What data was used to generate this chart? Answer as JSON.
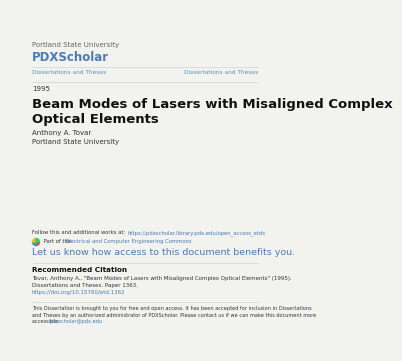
{
  "bg_color": "#f2f2ee",
  "institution": "Portland State University",
  "brand_name": "PDXScholar",
  "brand_color": "#4a7cb5",
  "nav_left": "Dissertations and Theses",
  "nav_right": "Dissertations and Theses",
  "nav_color": "#5a8fc0",
  "year": "1995",
  "title_line1": "Beam Modes of Lasers with Misaligned Complex",
  "title_line2": "Optical Elements",
  "author": "Anthony A. Tovar",
  "affiliation": "Portland State University",
  "follow_label": "Follow this and additional works at: ",
  "follow_link": "https://pdxscholar.library.pdx.edu/open_access_etds",
  "follow_link_color": "#4a7cb5",
  "part_of_label": " Part of the ",
  "part_of_link": "Electrical and Computer Engineering Commons",
  "part_of_link_color": "#4a7cb5",
  "cta_text": "Let us know how access to this document benefits you.",
  "cta_color": "#4a7cb5",
  "rec_citation_bold": "Recommended Citation",
  "rec_citation_line1": "Tovar, Anthony A., \"Beam Modes of Lasers with Misaligned Complex Optical Elements\" (1995).",
  "rec_citation_line2": "Dissertations and Theses. Paper 1363.",
  "rec_citation_link": "https://doi.org/10.15760/etd.1362",
  "rec_citation_link_color": "#4a7cb5",
  "disclaimer_line1": "This Dissertation is brought to you for free and open access. It has been accepted for inclusion in Dissertations",
  "disclaimer_line2": "and Theses by an authorized administrator of PDXScholar. Please contact us if we can make this document more",
  "disclaimer_line3": "accessible: ",
  "disclaimer_link": "pdxscholar@pdx.edu",
  "disclaimer_link_color": "#4a7cb5",
  "line_color": "#cccccc",
  "text_dark": "#333333",
  "text_black": "#111111",
  "text_gray": "#666666",
  "fs_institution": 5.0,
  "fs_brand": 8.5,
  "fs_nav": 4.2,
  "fs_year": 5.0,
  "fs_title": 9.5,
  "fs_author": 5.0,
  "fs_small": 3.8,
  "fs_cta": 6.8,
  "fs_rec_bold": 5.2,
  "fs_rec_body": 4.0,
  "fs_disclaimer": 3.6
}
